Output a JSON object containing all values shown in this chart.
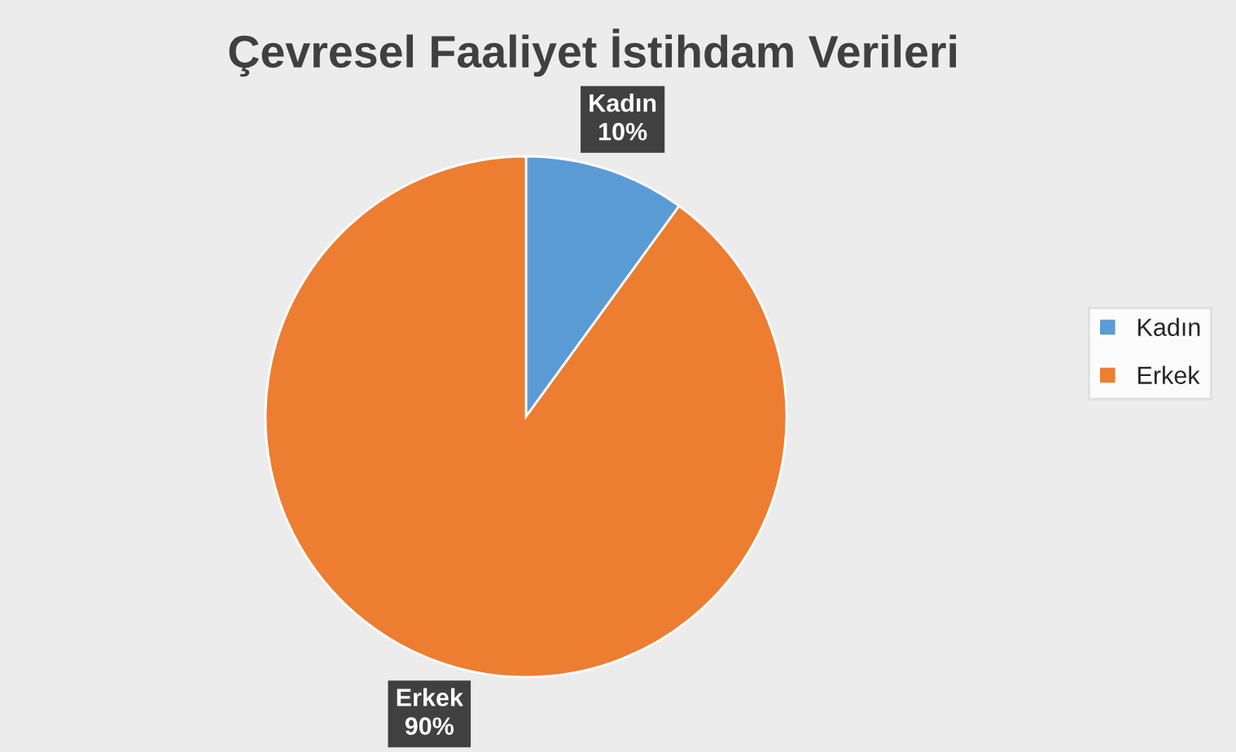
{
  "chart_data": {
    "type": "pie",
    "title": "Çevresel Faaliyet İstihdam Verileri",
    "categories": [
      "Kadın",
      "Erkek"
    ],
    "values": [
      10,
      90
    ],
    "value_labels": [
      "10%",
      "90%"
    ],
    "colors": [
      "#5b9bd5",
      "#ed7d31"
    ],
    "legend": "right"
  }
}
